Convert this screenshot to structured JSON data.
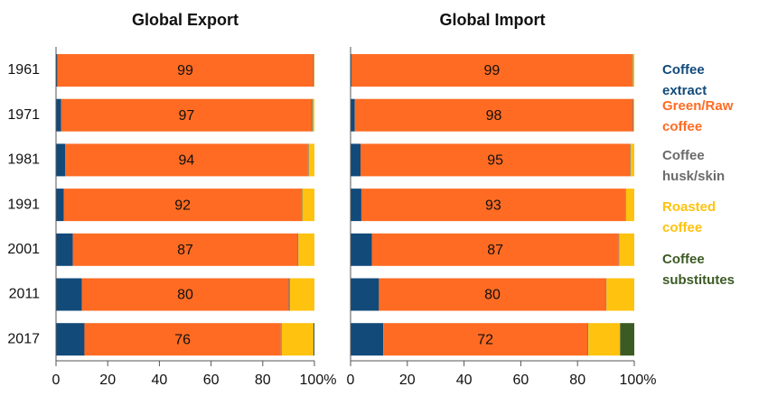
{
  "chart_data": [
    {
      "type": "stacked-barh",
      "title": "Global Export",
      "categories": [
        "1961",
        "1971",
        "1981",
        "1991",
        "2001",
        "2011",
        "2017"
      ],
      "series": [
        {
          "name": "Coffee extract",
          "color": "#124a7a",
          "values": [
            0.5,
            2,
            3.5,
            3,
            6.5,
            10,
            11
          ]
        },
        {
          "name": "Green/Raw coffee",
          "color": "#ff6b22",
          "data_labels": true,
          "values": [
            99,
            97,
            94,
            92,
            87,
            80,
            76
          ]
        },
        {
          "name": "Coffee husk/skin",
          "color": "#6b6b6b",
          "values": [
            0.3,
            0.3,
            0.3,
            0.3,
            0.3,
            0.5,
            0.3
          ]
        },
        {
          "name": "Roasted coffee",
          "color": "#ffc20e",
          "values": [
            0.2,
            0.7,
            2.2,
            4.7,
            6.2,
            9.5,
            12.3
          ]
        },
        {
          "name": "Coffee substitutes",
          "color": "#3b5a24",
          "values": [
            0,
            0,
            0,
            0,
            0,
            0,
            0.4
          ]
        }
      ],
      "xlim": [
        0,
        100
      ],
      "xticks": [
        0,
        20,
        40,
        60,
        80,
        {
          "value": 100,
          "label": "100%"
        }
      ]
    },
    {
      "type": "stacked-barh",
      "title": "Global Import",
      "series": [
        {
          "name": "Coffee extract",
          "color": "#124a7a",
          "values": [
            0.3,
            1.5,
            3.5,
            3.8,
            7.5,
            10,
            11.5
          ]
        },
        {
          "name": "Green/Raw coffee",
          "color": "#ff6b22",
          "data_labels": true,
          "values": [
            99,
            98,
            95,
            93,
            87,
            80,
            72
          ]
        },
        {
          "name": "Coffee husk/skin",
          "color": "#6b6b6b",
          "values": [
            0.2,
            0.2,
            0.2,
            0.2,
            0.2,
            0.2,
            0.3
          ]
        },
        {
          "name": "Roasted coffee",
          "color": "#ffc20e",
          "values": [
            0.5,
            0.3,
            1.3,
            3,
            5.3,
            9.8,
            11.2
          ]
        },
        {
          "name": "Coffee substitutes",
          "color": "#3b5a24",
          "values": [
            0,
            0,
            0,
            0,
            0,
            0,
            5
          ]
        }
      ],
      "xlim": [
        0,
        100
      ],
      "xticks": [
        0,
        20,
        40,
        60,
        80,
        {
          "value": 100,
          "label": "100%"
        }
      ]
    }
  ]
}
